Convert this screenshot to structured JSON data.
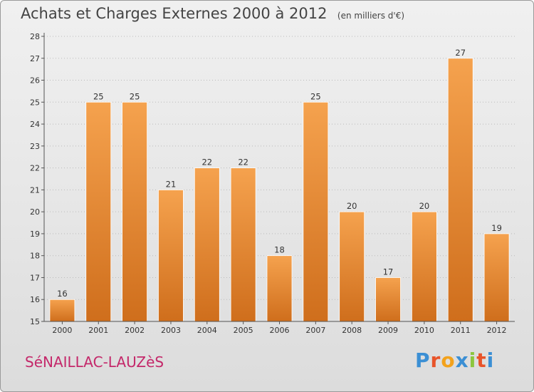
{
  "header": {
    "title": "Achats et Charges Externes 2000 à 2012",
    "subtitle": "(en milliers d'€)"
  },
  "footer": {
    "commune": "SéNAILLAC-LAUZèS",
    "logo_text": "Proxiti",
    "logo_colors": [
      "#3b8fd4",
      "#e8542a",
      "#f3a21c",
      "#3b8fd4",
      "#8cc63e",
      "#e8542a",
      "#3b8fd4"
    ]
  },
  "colors": {
    "bar_top": "#f5a24e",
    "bar_bottom": "#cf6e1c",
    "grid": "#bbbbbb",
    "axis": "#555555"
  },
  "chart_data": {
    "type": "bar",
    "title": "Achats et Charges Externes 2000 à 2012",
    "subtitle": "(en milliers d'€)",
    "categories": [
      "2000",
      "2001",
      "2002",
      "2003",
      "2004",
      "2005",
      "2006",
      "2007",
      "2008",
      "2009",
      "2010",
      "2011",
      "2012"
    ],
    "values": [
      16,
      25,
      25,
      21,
      22,
      22,
      18,
      25,
      20,
      17,
      20,
      27,
      19
    ],
    "ylim": [
      15,
      28
    ],
    "yticks": [
      15,
      16,
      17,
      18,
      19,
      20,
      21,
      22,
      23,
      24,
      25,
      26,
      27,
      28
    ],
    "xlabel": "",
    "ylabel": "",
    "grid": true,
    "data_labels": true
  }
}
